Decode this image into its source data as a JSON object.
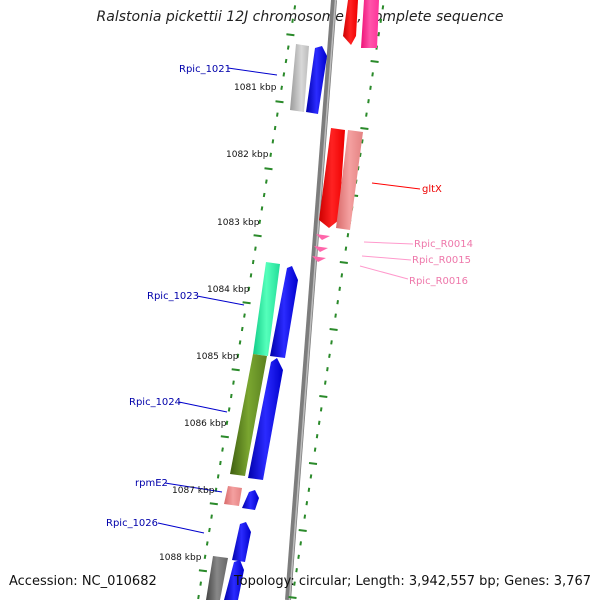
{
  "title": "Ralstonia pickettii 12J chromosome 1, complete sequence",
  "footer": {
    "accession": "Accession: NC_010682",
    "topology": "Topology: circular; Length: 3,942,557 bp; Genes: 3,767"
  },
  "colors": {
    "cds_forward": "#0000ee",
    "gene_label": "#0000aa",
    "gltX": "#ff0000",
    "trna": "#ff66aa",
    "backbone": "#888888",
    "tick": "#2a8a2a"
  },
  "kbp_markers": [
    {
      "label": "1081 kbp"
    },
    {
      "label": "1082 kbp"
    },
    {
      "label": "1083 kbp"
    },
    {
      "label": "1084 kbp"
    },
    {
      "label": "1085 kbp"
    },
    {
      "label": "1086 kbp"
    },
    {
      "label": "1087 kbp"
    },
    {
      "label": "1088 kbp"
    }
  ],
  "genes": [
    {
      "label": "Rpic_1021"
    },
    {
      "label": "Rpic_1023"
    },
    {
      "label": "Rpic_1024"
    },
    {
      "label": "rpmE2"
    },
    {
      "label": "Rpic_1026"
    },
    {
      "label": "gltX"
    },
    {
      "label": "Rpic_R0014"
    },
    {
      "label": "Rpic_R0015"
    },
    {
      "label": "Rpic_R0016"
    }
  ]
}
